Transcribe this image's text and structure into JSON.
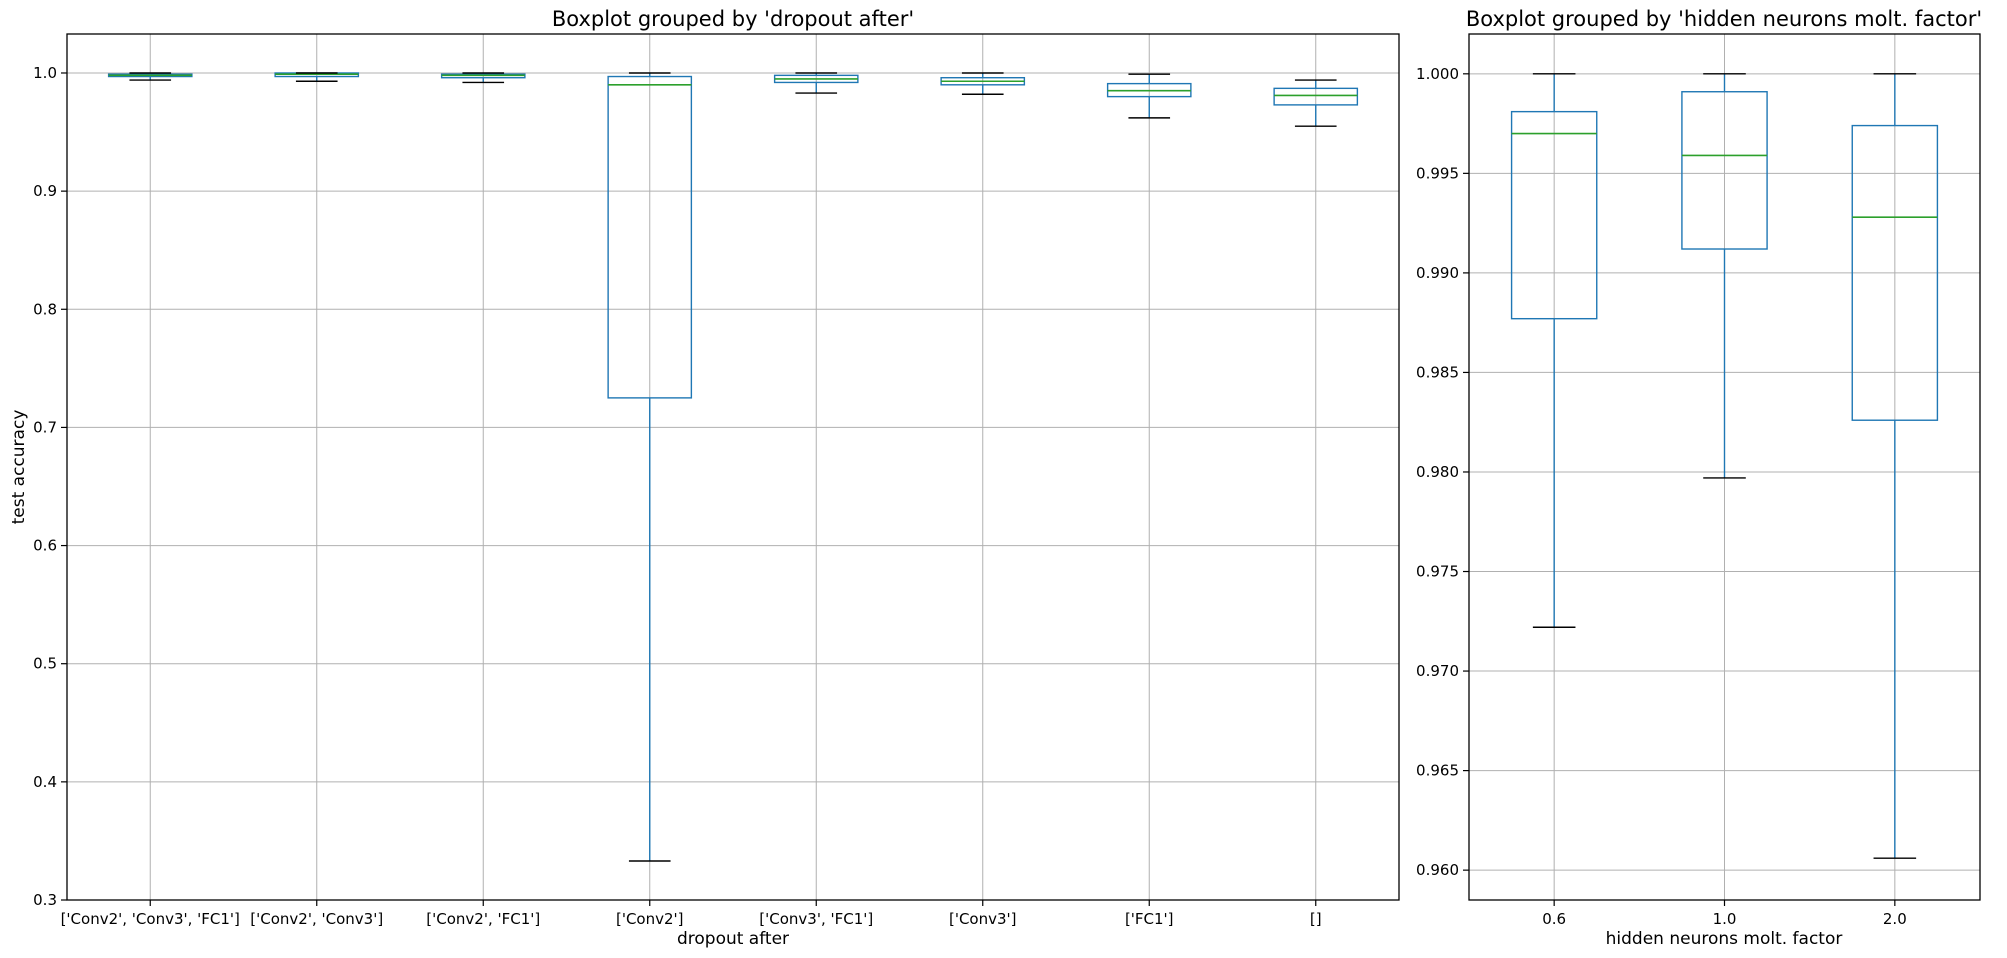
{
  "chart_data": [
    {
      "type": "box",
      "title": "Boxplot grouped by 'dropout after'",
      "xlabel": "dropout after",
      "ylabel": "test accuracy",
      "ylim": [
        0.3,
        1.033
      ],
      "yticks": [
        "0.3",
        "0.4",
        "0.5",
        "0.6",
        "0.7",
        "0.8",
        "0.9",
        "1.0"
      ],
      "grid": true,
      "categories": [
        "['Conv2', 'Conv3', 'FC1']",
        "['Conv2', 'Conv3']",
        "['Conv2', 'FC1']",
        "['Conv2']",
        "['Conv3', 'FC1']",
        "['Conv3']",
        "['FC1']",
        "[]"
      ],
      "boxes": [
        {
          "whislo": 0.994,
          "q1": 0.997,
          "med": 0.998,
          "q3": 0.999,
          "whishi": 1.0
        },
        {
          "whislo": 0.993,
          "q1": 0.997,
          "med": 0.999,
          "q3": 1.0,
          "whishi": 1.0
        },
        {
          "whislo": 0.992,
          "q1": 0.996,
          "med": 0.998,
          "q3": 0.999,
          "whishi": 1.0
        },
        {
          "whislo": 0.333,
          "q1": 0.725,
          "med": 0.99,
          "q3": 0.997,
          "whishi": 1.0
        },
        {
          "whislo": 0.983,
          "q1": 0.992,
          "med": 0.995,
          "q3": 0.998,
          "whishi": 1.0
        },
        {
          "whislo": 0.982,
          "q1": 0.99,
          "med": 0.993,
          "q3": 0.996,
          "whishi": 1.0
        },
        {
          "whislo": 0.962,
          "q1": 0.98,
          "med": 0.985,
          "q3": 0.991,
          "whishi": 0.999
        },
        {
          "whislo": 0.955,
          "q1": 0.973,
          "med": 0.981,
          "q3": 0.987,
          "whishi": 0.994
        }
      ]
    },
    {
      "type": "box",
      "title": "Boxplot grouped by 'hidden neurons molt. factor'",
      "xlabel": "hidden neurons molt. factor",
      "ylabel": "",
      "ylim": [
        0.9585,
        1.002
      ],
      "yticks": [
        "0.960",
        "0.965",
        "0.970",
        "0.975",
        "0.980",
        "0.985",
        "0.990",
        "0.995",
        "1.000"
      ],
      "grid": true,
      "categories": [
        "0.6",
        "1.0",
        "2.0"
      ],
      "boxes": [
        {
          "whislo": 0.9722,
          "q1": 0.9877,
          "med": 0.997,
          "q3": 0.9981,
          "whishi": 1.0
        },
        {
          "whislo": 0.9797,
          "q1": 0.9912,
          "med": 0.9959,
          "q3": 0.9991,
          "whishi": 1.0
        },
        {
          "whislo": 0.9606,
          "q1": 0.9826,
          "med": 0.9928,
          "q3": 0.9974,
          "whishi": 1.0
        }
      ]
    }
  ],
  "colors": {
    "box": "#1f77b4",
    "median": "#2ca02c",
    "cap": "#000000",
    "grid": "#b0b0b0",
    "axes": "#000000"
  }
}
